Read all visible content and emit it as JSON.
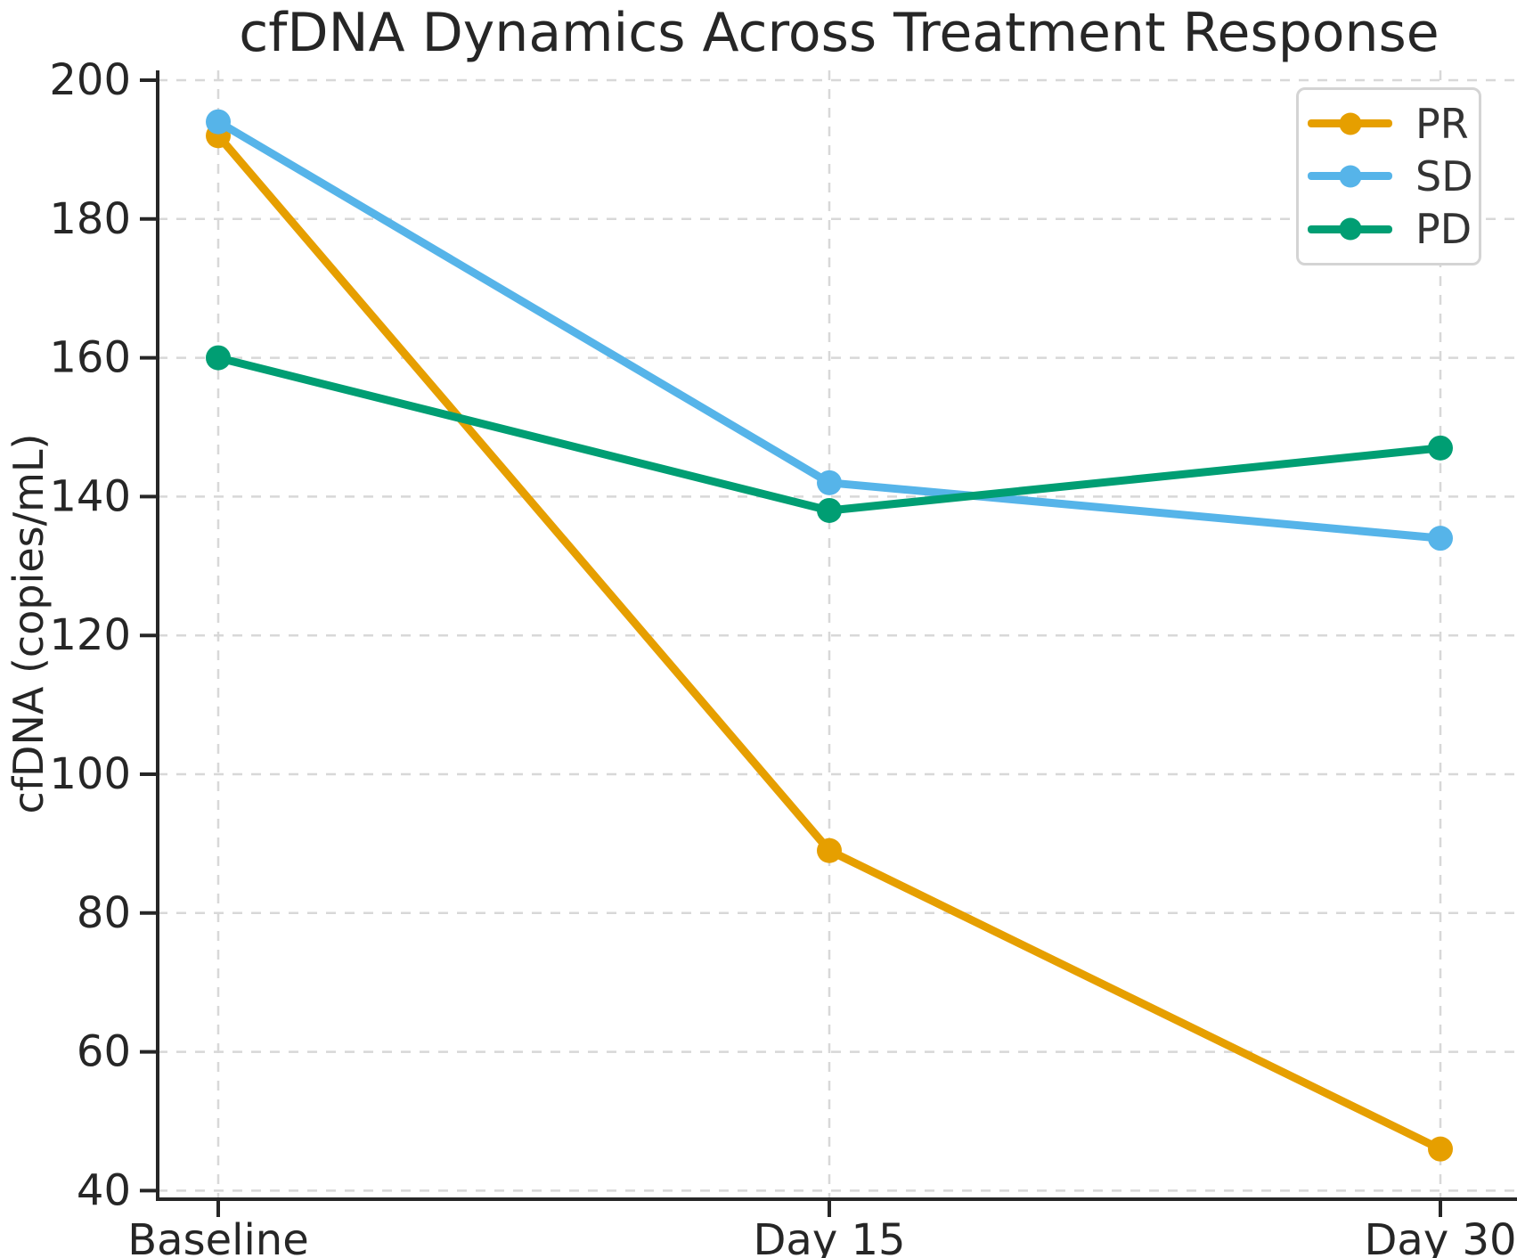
{
  "chart_data": {
    "type": "line",
    "title": "cfDNA Dynamics Across Treatment Response",
    "xlabel": "",
    "ylabel": "cfDNA (copies/mL)",
    "categories": [
      "Baseline",
      "Day 15",
      "Day 30"
    ],
    "series": [
      {
        "name": "PR",
        "color": "#E69F00",
        "values": [
          192,
          89,
          46
        ]
      },
      {
        "name": "SD",
        "color": "#56B4E9",
        "values": [
          194,
          142,
          134
        ]
      },
      {
        "name": "PD",
        "color": "#009E73",
        "values": [
          160,
          138,
          147
        ]
      }
    ],
    "yticks": [
      40,
      60,
      80,
      100,
      120,
      140,
      160,
      180,
      200
    ],
    "ylim": [
      38.5,
      201.5
    ],
    "grid": true,
    "grid_style": "dashed",
    "legend_position": "upper right",
    "colors": {
      "axis": "#262626",
      "text": "#262626",
      "grid": "#d8d8d8",
      "legend_border": "#d4d4d4",
      "background": "#ffffff"
    }
  }
}
